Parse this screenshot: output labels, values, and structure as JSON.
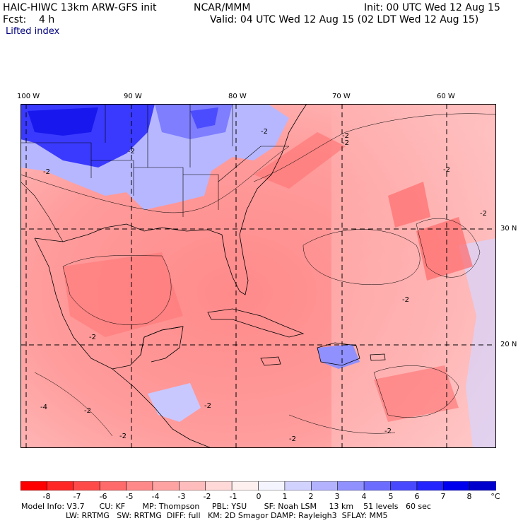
{
  "header": {
    "model": "HAIC-HIWC 13km ARW-GFS init",
    "org": "NCAR/MMM",
    "init": "Init: 00 UTC Wed 12 Aug 15",
    "fcst": "Fcst:    4 h",
    "valid": "Valid: 04 UTC Wed 12 Aug 15 (02 LDT Wed 12 Aug 15)",
    "field": "Lifted index"
  },
  "axes": {
    "lon_labels": [
      "100 W",
      "90 W",
      "80 W",
      "70 W",
      "60 W"
    ],
    "lat_labels": [
      "30 N",
      "20 N"
    ]
  },
  "contour_labels": [
    "-2",
    "-2",
    "-2",
    "-2",
    "-2",
    "-2",
    "-2",
    "-2",
    "-2",
    "-2",
    "-2",
    "-2",
    "-2",
    "-2",
    "-4"
  ],
  "legend": {
    "labels": [
      "-8",
      "-7",
      "-6",
      "-5",
      "-4",
      "-3",
      "-2",
      "-1",
      "0",
      "1",
      "2",
      "3",
      "4",
      "5",
      "6",
      "7",
      "8"
    ],
    "unit": "°C",
    "colors": [
      "#ff0000",
      "#ff2626",
      "#ff4a4a",
      "#ff6a6a",
      "#ff8888",
      "#ffa2a2",
      "#ffbcbc",
      "#ffd8d8",
      "#fff0f0",
      "#f4f4ff",
      "#d2d2ff",
      "#b2b2ff",
      "#9090ff",
      "#6c6cff",
      "#4848ff",
      "#2424ff",
      "#0000ee",
      "#0000cc"
    ]
  },
  "footer": {
    "line1": "Model Info: V3.7      CU: KF       MP: Thompson     PBL: YSU       SF: Noah LSM     13 km    51 levels   60 sec",
    "line2": "                  LW: RRTMG   SW: RRTMG  DIFF: full   KM: 2D Smagor DAMP: Rayleigh3  SFLAY: MM5"
  }
}
